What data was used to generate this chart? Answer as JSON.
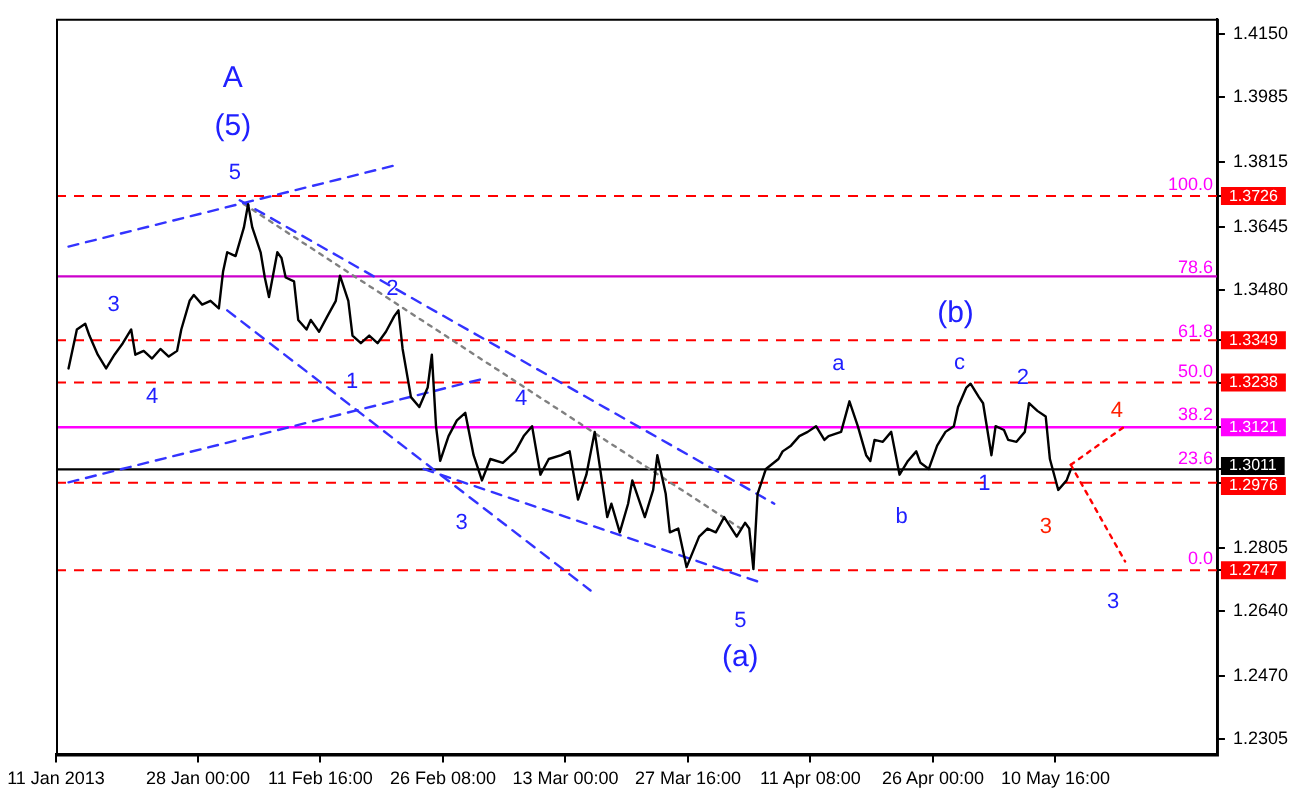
{
  "chart_data": {
    "type": "line",
    "marker": "none",
    "x": [
      "2013-01-12T12:00",
      "2013-01-13T12:00",
      "2013-01-14T12:00",
      "2013-01-15T00:00",
      "2013-01-16T00:00",
      "2013-01-17T00:00",
      "2013-01-18T00:00",
      "2013-01-19T00:00",
      "2013-01-20T00:00",
      "2013-01-20T12:00",
      "2013-01-21T12:00",
      "2013-01-22T12:00",
      "2013-01-23T12:00",
      "2013-01-24T12:00",
      "2013-01-25T12:00",
      "2013-01-26T00:00",
      "2013-01-27T00:00",
      "2013-01-27T12:00",
      "2013-01-28T12:00",
      "2013-01-29T12:00",
      "2013-01-30T12:00",
      "2013-01-31T00:00",
      "2013-01-31T12:00",
      "2013-02-01T12:00",
      "2013-02-02T12:00",
      "2013-02-03T00:00",
      "2013-02-03T12:00",
      "2013-02-04T12:00",
      "2013-02-05T00:00",
      "2013-02-05T12:00",
      "2013-02-06T12:00",
      "2013-02-07T00:00",
      "2013-02-07T12:00",
      "2013-02-08T12:00",
      "2013-02-09T00:00",
      "2013-02-10T00:00",
      "2013-02-10T12:00",
      "2013-02-11T12:00",
      "2013-02-12T12:00",
      "2013-02-13T12:00",
      "2013-02-14T00:00",
      "2013-02-15T00:00",
      "2013-02-15T12:00",
      "2013-02-16T12:00",
      "2013-02-17T12:00",
      "2013-02-18T12:00",
      "2013-02-19T12:00",
      "2013-02-20T12:00",
      "2013-02-21T00:00",
      "2013-02-21T12:00",
      "2013-02-22T12:00",
      "2013-02-23T12:00",
      "2013-02-24T12:00",
      "2013-02-25T00:00",
      "2013-02-25T12:00",
      "2013-02-26T00:00",
      "2013-02-27T00:00",
      "2013-02-28T00:00",
      "2013-03-01T00:00",
      "2013-03-02T00:00",
      "2013-03-03T00:00",
      "2013-03-04T00:00",
      "2013-03-05T12:00",
      "2013-03-07T00:00",
      "2013-03-08T00:00",
      "2013-03-09T00:00",
      "2013-03-10T00:00",
      "2013-03-11T00:00",
      "2013-03-12T12:00",
      "2013-03-13T12:00",
      "2013-03-14T12:00",
      "2013-03-15T12:00",
      "2013-03-16T12:00",
      "2013-03-18T00:00",
      "2013-03-18T12:00",
      "2013-03-19T12:00",
      "2013-03-20T12:00",
      "2013-03-21T00:00",
      "2013-03-22T12:00",
      "2013-03-23T12:00",
      "2013-03-24T00:00",
      "2013-03-25T00:00",
      "2013-03-25T12:00",
      "2013-03-26T12:00",
      "2013-03-27T12:00",
      "2013-03-29T00:00",
      "2013-03-30T00:00",
      "2013-03-31T00:00",
      "2013-04-01T00:00",
      "2013-04-02T12:00",
      "2013-04-03T12:00",
      "2013-04-04T00:00",
      "2013-04-04T12:00",
      "2013-04-05T00:00",
      "2013-04-06T00:00",
      "2013-04-07T12:00",
      "2013-04-08T00:00",
      "2013-04-09T00:00",
      "2013-04-10T00:00",
      "2013-04-11T00:00",
      "2013-04-12T00:00",
      "2013-04-13T00:00",
      "2013-04-13T12:00",
      "2013-04-15T00:00",
      "2013-04-16T00:00",
      "2013-04-17T00:00",
      "2013-04-18T00:00",
      "2013-04-18T12:00",
      "2013-04-19T00:00",
      "2013-04-20T00:00",
      "2013-04-21T00:00",
      "2013-04-22T00:00",
      "2013-04-23T00:00",
      "2013-04-24T00:00",
      "2013-04-24T12:00",
      "2013-04-25T12:00",
      "2013-04-26T12:00",
      "2013-04-27T12:00",
      "2013-04-28T12:00",
      "2013-04-29T00:00",
      "2013-04-30T00:00",
      "2013-04-30T12:00",
      "2013-05-01T12:00",
      "2013-05-02T00:00",
      "2013-05-03T00:00",
      "2013-05-03T12:00",
      "2013-05-04T12:00",
      "2013-05-05T00:00",
      "2013-05-06T00:00",
      "2013-05-07T00:00",
      "2013-05-07T12:00",
      "2013-05-08T12:00",
      "2013-05-09T12:00",
      "2013-05-10T00:00",
      "2013-05-11T00:00",
      "2013-05-12T00:00",
      "2013-05-12T12:00"
    ],
    "series": [
      {
        "color": "#000000",
        "values": [
          1.3275,
          1.3377,
          1.3392,
          1.3361,
          1.3311,
          1.3275,
          1.3311,
          1.3341,
          1.3377,
          1.3311,
          1.3321,
          1.3301,
          1.3326,
          1.3306,
          1.3321,
          1.3377,
          1.3452,
          1.3467,
          1.3442,
          1.3452,
          1.3432,
          1.3528,
          1.3579,
          1.3569,
          1.3644,
          1.3705,
          1.3644,
          1.3579,
          1.3513,
          1.3462,
          1.3579,
          1.3564,
          1.3513,
          1.3503,
          1.3402,
          1.3377,
          1.3402,
          1.3371,
          1.3412,
          1.3452,
          1.3518,
          1.3452,
          1.3361,
          1.3341,
          1.3361,
          1.3341,
          1.3371,
          1.3412,
          1.3427,
          1.3326,
          1.32,
          1.3174,
          1.3225,
          1.3311,
          1.3124,
          1.3033,
          1.3098,
          1.3139,
          1.3159,
          1.3048,
          1.2982,
          1.3038,
          1.3028,
          1.3058,
          1.3098,
          1.3124,
          1.2997,
          1.3038,
          1.3048,
          1.3058,
          1.2932,
          1.2997,
          1.3109,
          1.2886,
          1.2921,
          1.2846,
          1.2921,
          1.2982,
          1.2886,
          1.2957,
          1.3048,
          1.2947,
          1.2846,
          1.2856,
          1.2755,
          1.2835,
          1.2856,
          1.2846,
          1.2886,
          1.2835,
          1.2871,
          1.2856,
          1.275,
          1.2947,
          1.3012,
          1.3038,
          1.3058,
          1.3073,
          1.3098,
          1.3109,
          1.3124,
          1.3088,
          1.3098,
          1.3109,
          1.3189,
          1.3124,
          1.3048,
          1.3033,
          1.3088,
          1.3083,
          1.3109,
          1.2997,
          1.3033,
          1.3058,
          1.3028,
          1.3012,
          1.3073,
          1.3109,
          1.3124,
          1.3174,
          1.3225,
          1.3235,
          1.32,
          1.3184,
          1.3048,
          1.3124,
          1.3114,
          1.3088,
          1.3083,
          1.3109,
          1.3184,
          1.3164,
          1.3149,
          1.3038,
          1.2957,
          1.2982,
          1.3011
        ]
      },
      {
        "type": "line",
        "x": [
          "2013-01-12T12:00",
          "2013-02-20T12:00"
        ],
        "values": [
          1.3594,
          1.3806
        ],
        "color": "#3333ff",
        "line_style": "dashed"
      },
      {
        "type": "line",
        "x": [
          "2013-01-12T12:00",
          "2013-03-03T12:00"
        ],
        "values": [
          1.2977,
          1.325
        ],
        "color": "#3333ff",
        "line_style": "dashed"
      },
      {
        "type": "line",
        "x": [
          "2013-02-02T00:00",
          "2013-04-07T00:00"
        ],
        "values": [
          1.3715,
          1.2921
        ],
        "color": "#3333ff",
        "line_style": "dashed"
      },
      {
        "type": "line",
        "x": [
          "2013-01-31T12:00",
          "2013-03-16T00:00"
        ],
        "values": [
          1.3427,
          1.2694
        ],
        "color": "#3333ff",
        "line_style": "dashed"
      },
      {
        "type": "line",
        "x": [
          "2013-02-24T00:00",
          "2013-04-05T12:00"
        ],
        "values": [
          1.3012,
          1.2714
        ],
        "color": "#3333ff",
        "line_style": "dashed"
      },
      {
        "type": "line",
        "x": [
          "2013-02-02T12:00",
          "2013-04-03T00:00"
        ],
        "values": [
          1.3705,
          1.2856
        ],
        "color": "#808080",
        "line_style": "dotted"
      },
      {
        "type": "line",
        "x": [
          "2013-05-12T12:00",
          "2013-05-19T00:00"
        ],
        "values": [
          1.3023,
          1.3124
        ],
        "color": "#ff0000",
        "line_style": "dotted"
      },
      {
        "type": "line",
        "x": [
          "2013-05-12T12:00",
          "2013-05-19T00:00"
        ],
        "values": [
          1.3023,
          1.277
        ],
        "color": "#ff0000",
        "line_style": "dotted"
      }
    ],
    "xlim": [
      "2013-01-11T00:00",
      "2013-05-30T00:00"
    ],
    "xticks": [
      {
        "value": "2013-01-11T00:00",
        "label": "11 Jan 2013"
      },
      {
        "value": "2013-01-28T00:00",
        "label": "28 Jan 00:00"
      },
      {
        "value": "2013-02-11T16:00",
        "label": "11 Feb 16:00"
      },
      {
        "value": "2013-02-26T08:00",
        "label": "26 Feb 08:00"
      },
      {
        "value": "2013-03-13T00:00",
        "label": "13 Mar 00:00"
      },
      {
        "value": "2013-03-27T16:00",
        "label": "27 Mar 16:00"
      },
      {
        "value": "2013-04-11T08:00",
        "label": "11 Apr 08:00"
      },
      {
        "value": "2013-04-26T00:00",
        "label": "26 Apr 00:00"
      },
      {
        "value": "2013-05-10T16:00",
        "label": "10 May 16:00"
      }
    ],
    "ylim": [
      1.2265,
      1.419
    ],
    "yticks": [
      {
        "value": 1.415,
        "label": "1.4150"
      },
      {
        "value": 1.3985,
        "label": "1.3985"
      },
      {
        "value": 1.3815,
        "label": "1.3815"
      },
      {
        "value": 1.3726,
        "label": "1.3726"
      },
      {
        "value": 1.3645,
        "label": "1.3645"
      },
      {
        "value": 1.348,
        "label": "1.3480"
      },
      {
        "value": 1.3349,
        "label": "1.3349"
      },
      {
        "value": 1.3238,
        "label": "1.3238"
      },
      {
        "value": 1.3121,
        "label": "1.3121"
      },
      {
        "value": 1.3011,
        "label": "1.3011"
      },
      {
        "value": 1.2976,
        "label": "1.2976"
      },
      {
        "value": 1.2805,
        "label": "1.2805"
      },
      {
        "value": 1.2747,
        "label": "1.2747"
      },
      {
        "value": 1.264,
        "label": "1.2640"
      },
      {
        "value": 1.247,
        "label": "1.2470"
      },
      {
        "value": 1.2305,
        "label": "1.2305"
      }
    ],
    "ref_lines": [
      {
        "axis": "y",
        "value": 1.3726,
        "color": "#ff0000",
        "line_style": "dashed"
      },
      {
        "axis": "y",
        "value": 1.3516,
        "color": "#cc00cc",
        "line_style": "solid"
      },
      {
        "axis": "y",
        "value": 1.3349,
        "color": "#ff0000",
        "line_style": "dashed"
      },
      {
        "axis": "y",
        "value": 1.3238,
        "color": "#ff0000",
        "line_style": "dashed"
      },
      {
        "axis": "y",
        "value": 1.3121,
        "color": "#ff00ff",
        "line_style": "solid"
      },
      {
        "axis": "y",
        "value": 1.3011,
        "color": "#000000",
        "line_style": "solid"
      },
      {
        "axis": "y",
        "value": 1.2976,
        "color": "#ff0000",
        "line_style": "dashed"
      },
      {
        "axis": "y",
        "value": 1.2747,
        "color": "#ff0000",
        "line_style": "dashed"
      }
    ],
    "annotations": [
      "A",
      "(5)",
      "5",
      "3",
      "4",
      "2",
      "1",
      "4",
      "3",
      "5",
      "(a)",
      "a",
      "b",
      "(b)",
      "c",
      "2",
      "1",
      "3",
      "4",
      "3",
      "100.0",
      "78.6",
      "61.8",
      "50.0",
      "38.2",
      "23.6",
      "0.0"
    ]
  }
}
